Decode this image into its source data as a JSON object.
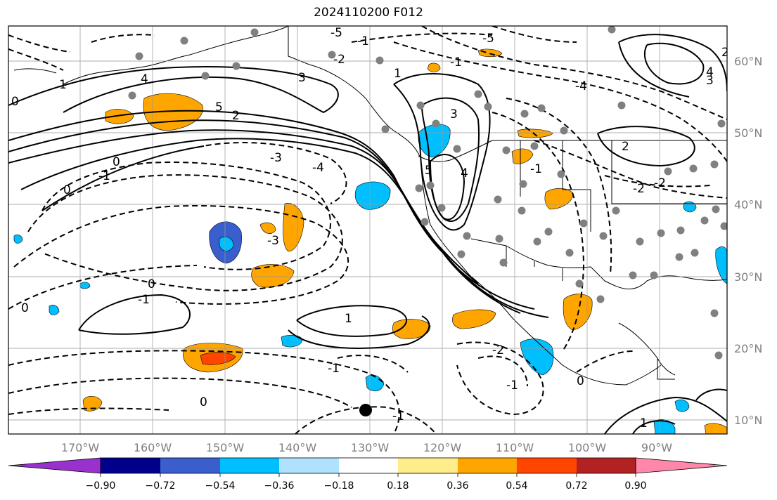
{
  "title": "2024110200 F012",
  "axes": {
    "lon_labels": [
      "170°W",
      "160°W",
      "150°W",
      "140°W",
      "130°W",
      "120°W",
      "110°W",
      "100°W",
      "90°W"
    ],
    "lat_labels": [
      "60°N",
      "50°N",
      "40°N",
      "30°N",
      "20°N",
      "10°N"
    ]
  },
  "colorbar": {
    "colors": [
      "#9932cc",
      "#00008b",
      "#3a5fcd",
      "#00bfff",
      "#b0e2ff",
      "#ffffff",
      "#ffec8b",
      "#ffa500",
      "#ff4500",
      "#b22222",
      "#ff88aa"
    ],
    "ticks": [
      "−0.90",
      "−0.72",
      "−0.54",
      "−0.36",
      "−0.18",
      "0.18",
      "0.36",
      "0.54",
      "0.72",
      "0.90"
    ]
  },
  "contour_labels": [
    "5",
    "4",
    "3",
    "2",
    "1",
    "0",
    "-1",
    "-2",
    "-3",
    "-4",
    "-5"
  ]
}
